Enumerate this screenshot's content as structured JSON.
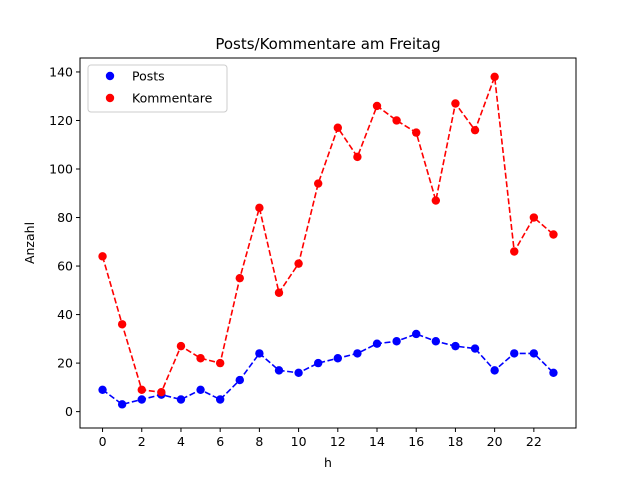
{
  "chart_data": {
    "type": "line",
    "title": "Posts/Kommentare am Freitag",
    "xlabel": "h",
    "ylabel": "Anzahl",
    "x": [
      0,
      1,
      2,
      3,
      4,
      5,
      6,
      7,
      8,
      9,
      10,
      11,
      12,
      13,
      14,
      15,
      16,
      17,
      18,
      19,
      20,
      21,
      22,
      23
    ],
    "xlim": [
      -1.15,
      24.15
    ],
    "ylim": [
      -6.75,
      145.75
    ],
    "xticks": [
      0,
      2,
      4,
      6,
      8,
      10,
      12,
      14,
      16,
      18,
      20,
      22
    ],
    "yticks": [
      0,
      20,
      40,
      60,
      80,
      100,
      120,
      140
    ],
    "grid": false,
    "legend_position": "upper-left",
    "series": [
      {
        "name": "Posts",
        "color": "#0000ff",
        "values": [
          9,
          3,
          5,
          7,
          5,
          9,
          5,
          13,
          24,
          17,
          16,
          20,
          22,
          24,
          28,
          29,
          32,
          29,
          27,
          26,
          17,
          24,
          24,
          16
        ]
      },
      {
        "name": "Kommentare",
        "color": "#ff0000",
        "values": [
          64,
          36,
          9,
          8,
          27,
          22,
          20,
          55,
          84,
          49,
          61,
          94,
          117,
          105,
          126,
          120,
          115,
          87,
          127,
          116,
          138,
          66,
          80,
          73
        ]
      }
    ]
  }
}
